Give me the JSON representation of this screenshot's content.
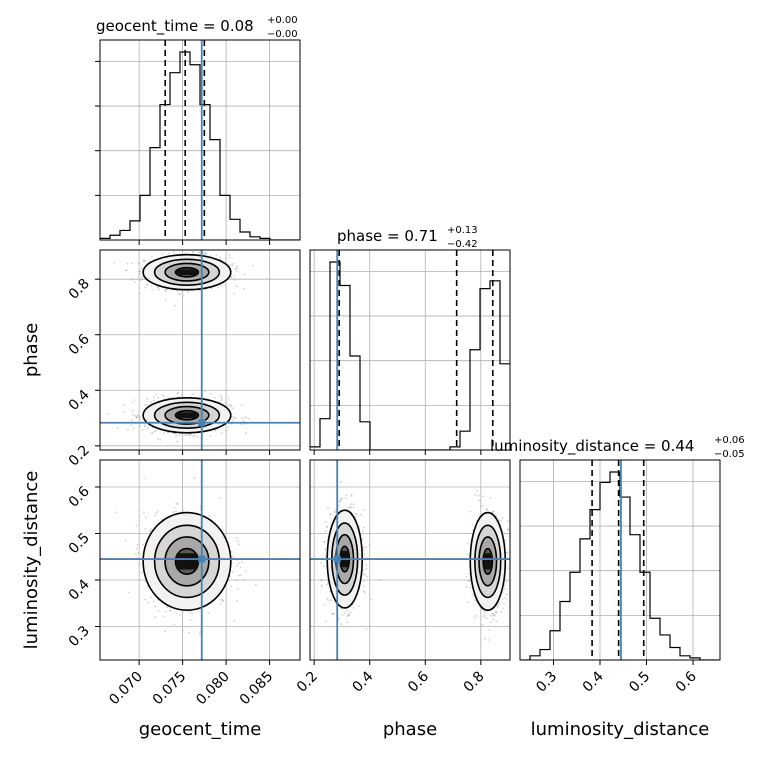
{
  "chart_data": {
    "type": "corner",
    "parameters": [
      "geocent_time",
      "phase",
      "luminosity_distance"
    ],
    "axis_labels": {
      "x": [
        "geocent_time",
        "phase",
        "luminosity_distance"
      ],
      "y": [
        "phase",
        "luminosity_distance"
      ]
    },
    "truths": {
      "geocent_time": 0.0772,
      "phase": 0.283,
      "luminosity_distance": 0.445
    },
    "ranges": {
      "geocent_time": [
        0.0655,
        0.0885
      ],
      "phase": [
        0.185,
        0.905
      ],
      "luminosity_distance": [
        0.228,
        0.658
      ]
    },
    "ticks": {
      "geocent_time": {
        "values": [
          0.07,
          0.075,
          0.08,
          0.085
        ],
        "labels": [
          "0.070",
          "0.075",
          "0.080",
          "0.085"
        ]
      },
      "phase": {
        "values": [
          0.2,
          0.4,
          0.6,
          0.8
        ],
        "labels": [
          "0.2",
          "0.4",
          "0.6",
          "0.8"
        ]
      },
      "luminosity_distance": {
        "values": [
          0.3,
          0.4,
          0.5,
          0.6
        ],
        "labels": [
          "0.3",
          "0.4",
          "0.5",
          "0.6"
        ]
      }
    },
    "titles": [
      {
        "param": "geocent_time",
        "text": "geocent_time = 0.08",
        "plus": "+0.00",
        "minus": "−0.00"
      },
      {
        "param": "phase",
        "text": "phase = 0.71",
        "plus": "+0.13",
        "minus": "−0.42"
      },
      {
        "param": "luminosity_distance",
        "text": "luminosity_distance = 0.44",
        "plus": "+0.06",
        "minus": "−0.05"
      }
    ],
    "quantiles": {
      "geocent_time": [
        0.073,
        0.0753,
        0.0775
      ],
      "phase": [
        0.29,
        0.713,
        0.843
      ],
      "luminosity_distance": [
        0.383,
        0.44,
        0.494
      ]
    },
    "histograms": {
      "geocent_time": {
        "edges": [
          0.0655,
          0.06665,
          0.0678,
          0.06895,
          0.0701,
          0.07125,
          0.0724,
          0.07355,
          0.0747,
          0.07585,
          0.077,
          0.07815,
          0.0793,
          0.08045,
          0.0816,
          0.08275,
          0.0839,
          0.08505,
          0.0862,
          0.08735,
          0.0885
        ],
        "counts": [
          1,
          3,
          6,
          12,
          28,
          58,
          85,
          105,
          118,
          110,
          85,
          63,
          28,
          13,
          5,
          2,
          1,
          0,
          0,
          0
        ]
      },
      "phase": {
        "edges": [
          0.185,
          0.221,
          0.257,
          0.293,
          0.329,
          0.365,
          0.401,
          0.437,
          0.473,
          0.509,
          0.545,
          0.581,
          0.617,
          0.653,
          0.689,
          0.725,
          0.761,
          0.797,
          0.833,
          0.869,
          0.905
        ],
        "counts": [
          2,
          20,
          120,
          105,
          60,
          18,
          0,
          0,
          0,
          0,
          0,
          0,
          0,
          0,
          2,
          12,
          64,
          103,
          108,
          55
        ]
      },
      "luminosity_distance": {
        "edges": [
          0.228,
          0.2495,
          0.271,
          0.2925,
          0.314,
          0.3355,
          0.357,
          0.3785,
          0.4,
          0.4215,
          0.443,
          0.4645,
          0.486,
          0.5075,
          0.529,
          0.5505,
          0.572,
          0.5935,
          0.615,
          0.6365,
          0.658
        ],
        "counts": [
          0,
          2,
          5,
          14,
          28,
          42,
          58,
          72,
          85,
          90,
          78,
          60,
          42,
          20,
          12,
          6,
          2,
          1,
          0,
          0
        ]
      }
    },
    "scatter_clusters": [
      {
        "x": "geocent_time",
        "y": "phase",
        "center": [
          0.0755,
          0.825
        ],
        "sd": [
          0.0024,
          0.03
        ]
      },
      {
        "x": "geocent_time",
        "y": "phase",
        "center": [
          0.0755,
          0.31
        ],
        "sd": [
          0.0024,
          0.03
        ]
      },
      {
        "x": "geocent_time",
        "y": "luminosity_distance",
        "center": [
          0.0755,
          0.44
        ],
        "sd": [
          0.0024,
          0.05
        ]
      },
      {
        "x": "phase",
        "y": "luminosity_distance",
        "center": [
          0.31,
          0.445
        ],
        "sd": [
          0.03,
          0.05
        ]
      },
      {
        "x": "phase",
        "y": "luminosity_distance",
        "center": [
          0.825,
          0.44
        ],
        "sd": [
          0.03,
          0.05
        ]
      }
    ],
    "grid": true,
    "truth_color": "#4682b4",
    "hist_color": "#000000"
  }
}
